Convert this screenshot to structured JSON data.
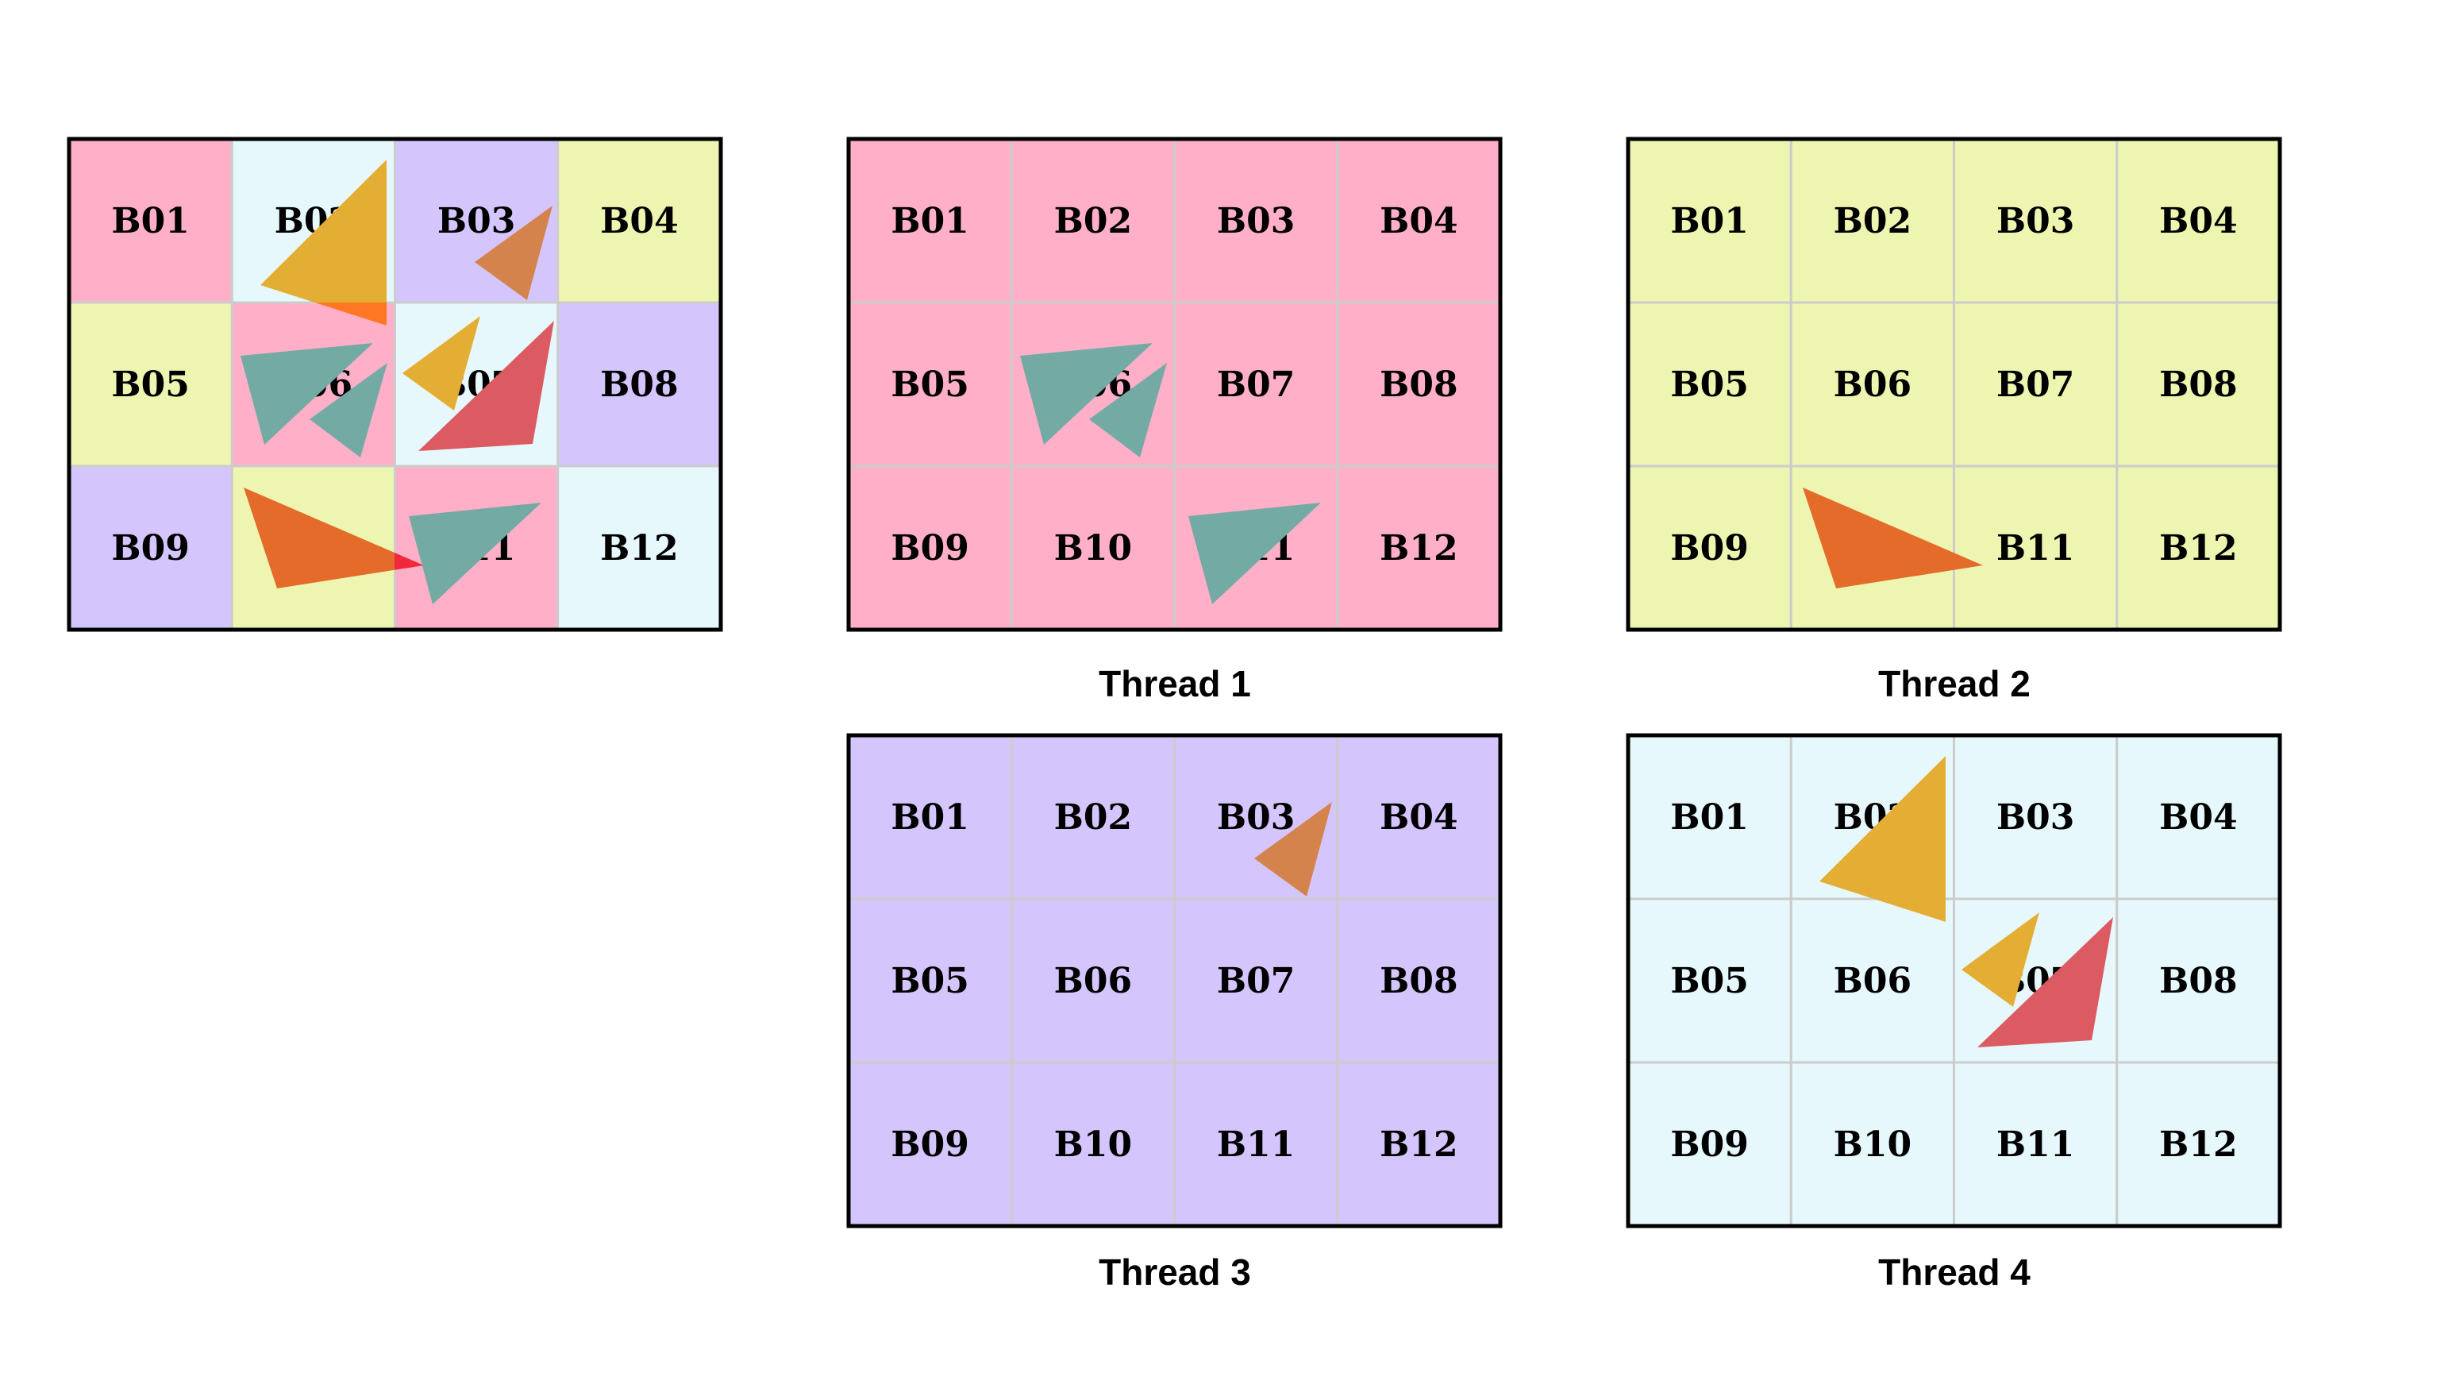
{
  "tiles": [
    "B01",
    "B02",
    "B03",
    "B04",
    "B05",
    "B06",
    "B07",
    "B08",
    "B09",
    "B10",
    "B11",
    "B12"
  ],
  "colors": {
    "pink": "#FFB0C8",
    "cyan": "#E6F8FC",
    "purple": "#D4C6FC",
    "yellow": "#EEF5B0",
    "grid_line": "#CCCCCC",
    "border": "#000000",
    "gold": "#E4AE34",
    "orange_brown": "#D4834D",
    "teal": "#74AAA4",
    "red": "#DC5A62",
    "orange": "#E46B29",
    "bright_orange": "#FF7722",
    "bright_red": "#F0283C"
  },
  "combined": {
    "tile_colors": [
      "pink",
      "cyan",
      "purple",
      "yellow",
      "yellow",
      "pink",
      "cyan",
      "purple",
      "purple",
      "yellow",
      "pink",
      "cyan"
    ]
  },
  "threads": [
    {
      "label": "Thread 1",
      "color": "pink",
      "shapes": [
        "b06a",
        "b06b",
        "b11"
      ]
    },
    {
      "label": "Thread 2",
      "color": "yellow",
      "shapes": [
        "b10"
      ]
    },
    {
      "label": "Thread 3",
      "color": "purple",
      "shapes": [
        "b03"
      ]
    },
    {
      "label": "Thread 4",
      "color": "cyan",
      "shapes": [
        "b02",
        "b07a",
        "b07b"
      ]
    }
  ]
}
